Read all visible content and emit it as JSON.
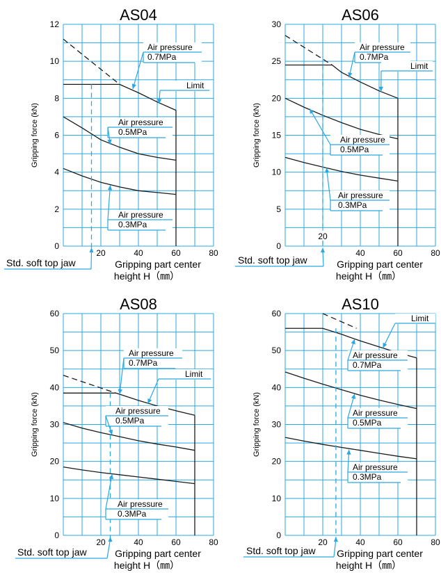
{
  "chart_data": [
    {
      "type": "line",
      "title": "AS04",
      "ylabel": "Gripping force (kN)",
      "xlabel_line1": "Gripping part center",
      "xlabel_line2": "height H（㎜）",
      "xlim": [
        0,
        80
      ],
      "ylim": [
        0,
        12
      ],
      "xticks": [
        "20",
        "40",
        "60",
        "80"
      ],
      "xtick_values": [
        20,
        40,
        60,
        80
      ],
      "yticks": [
        "0",
        "2",
        "4",
        "6",
        "8",
        "10",
        "12"
      ],
      "ytick_values": [
        0,
        2,
        4,
        6,
        8,
        10,
        12
      ],
      "grid": true,
      "x_grid_step": 10,
      "y_grid_step": 1,
      "limit_x": 60,
      "std_jaw_x": 15,
      "std_jaw_label": "Std. soft top jaw",
      "series": [
        {
          "pressure": "0.7MPa",
          "x": [
            30,
            40,
            50,
            60
          ],
          "y": [
            8.75,
            8.3,
            7.8,
            7.35
          ]
        },
        {
          "pressure": "0.5MPa",
          "x": [
            0,
            10,
            20,
            30,
            40,
            50,
            60
          ],
          "y": [
            7.0,
            6.4,
            5.75,
            5.35,
            5.0,
            4.8,
            4.65
          ]
        },
        {
          "pressure": "0.3MPa",
          "x": [
            0,
            10,
            20,
            30,
            40,
            50,
            60
          ],
          "y": [
            4.2,
            3.8,
            3.45,
            3.2,
            3.0,
            2.9,
            2.8
          ]
        }
      ],
      "plateau": {
        "x": [
          0,
          30
        ],
        "y": 8.75
      },
      "extrapolation": {
        "x": [
          0,
          30
        ],
        "y": [
          11.2,
          8.75
        ]
      },
      "annotations": [
        {
          "lines": [
            "Air pressure",
            "0.7MPa"
          ]
        },
        {
          "lines": [
            "Limit"
          ]
        },
        {
          "lines": [
            "Air pressure",
            "0.5MPa"
          ]
        },
        {
          "lines": [
            "Air pressure",
            "0.3MPa"
          ]
        }
      ]
    },
    {
      "type": "line",
      "title": "AS06",
      "ylabel": "Gripping force (kN)",
      "xlabel_line1": "Gripping part center",
      "xlabel_line2": "height H（㎜）",
      "xlim": [
        0,
        80
      ],
      "ylim": [
        0,
        30
      ],
      "xticks": [
        "40",
        "60",
        "80"
      ],
      "xtick_values": [
        40,
        60,
        80
      ],
      "yticks": [
        "0",
        "5",
        "10",
        "15",
        "20",
        "25",
        "30"
      ],
      "ytick_values": [
        0,
        5,
        10,
        15,
        20,
        25,
        30
      ],
      "grid": true,
      "x_grid_step": 10,
      "y_grid_step": 2.5,
      "limit_x": 60,
      "std_jaw_x": 20,
      "std_jaw_value_label": "20",
      "std_jaw_label": "Std. soft top jaw",
      "series": [
        {
          "pressure": "0.7MPa",
          "x": [
            25,
            30,
            40,
            50,
            60
          ],
          "y": [
            24.5,
            23.5,
            22.2,
            21.0,
            20.0
          ]
        },
        {
          "pressure": "0.5MPa",
          "x": [
            0,
            10,
            20,
            30,
            40,
            50,
            60
          ],
          "y": [
            20.0,
            18.8,
            17.7,
            16.7,
            15.8,
            15.1,
            14.5
          ]
        },
        {
          "pressure": "0.3MPa",
          "x": [
            0,
            10,
            20,
            30,
            40,
            50,
            60
          ],
          "y": [
            12.0,
            11.3,
            10.7,
            10.1,
            9.6,
            9.2,
            8.8
          ]
        }
      ],
      "plateau": {
        "x": [
          0,
          25
        ],
        "y": 24.5
      },
      "extrapolation": {
        "x": [
          0,
          25
        ],
        "y": [
          28.5,
          24.5
        ]
      },
      "annotations": [
        {
          "lines": [
            "Air pressure",
            "0.7MPa"
          ]
        },
        {
          "lines": [
            "Limit"
          ]
        },
        {
          "lines": [
            "Air pressure",
            "0.5MPa"
          ]
        },
        {
          "lines": [
            "Air pressure",
            "0.3MPa"
          ]
        }
      ]
    },
    {
      "type": "line",
      "title": "AS08",
      "ylabel": "Gripping force (kN)",
      "xlabel_line1": "Gripping part center",
      "xlabel_line2": "height H（㎜）",
      "xlim": [
        0,
        80
      ],
      "ylim": [
        0,
        60
      ],
      "xticks": [
        "20",
        "40",
        "60",
        "80"
      ],
      "xtick_values": [
        20,
        40,
        60,
        80
      ],
      "yticks": [
        "0",
        "10",
        "20",
        "30",
        "40",
        "50",
        "60"
      ],
      "ytick_values": [
        0,
        10,
        20,
        30,
        40,
        50,
        60
      ],
      "grid": true,
      "x_grid_step": 10,
      "y_grid_step": 5,
      "limit_x": 70,
      "std_jaw_x": 25,
      "std_jaw_label": "Std. soft top jaw",
      "series": [
        {
          "pressure": "0.7MPa",
          "x": [
            28,
            40,
            50,
            60,
            70
          ],
          "y": [
            38.5,
            36.5,
            35.0,
            33.7,
            32.5
          ]
        },
        {
          "pressure": "0.5MPa",
          "x": [
            0,
            10,
            20,
            30,
            40,
            50,
            60,
            70
          ],
          "y": [
            30.5,
            29.0,
            27.8,
            26.7,
            25.6,
            24.7,
            23.9,
            23.0
          ]
        },
        {
          "pressure": "0.3MPa",
          "x": [
            0,
            10,
            20,
            30,
            40,
            50,
            60,
            70
          ],
          "y": [
            18.5,
            17.7,
            17.0,
            16.4,
            15.8,
            15.2,
            14.6,
            14.0
          ]
        }
      ],
      "plateau": {
        "x": [
          0,
          28
        ],
        "y": 38.5
      },
      "extrapolation": {
        "x": [
          0,
          28
        ],
        "y": [
          43.3,
          38.5
        ]
      },
      "annotations": [
        {
          "lines": [
            "Air pressure",
            "0.7MPa"
          ]
        },
        {
          "lines": [
            "Limit"
          ]
        },
        {
          "lines": [
            "Air pressure",
            "0.5MPa"
          ]
        },
        {
          "lines": [
            "Air pressure",
            "0.3MPa"
          ]
        }
      ]
    },
    {
      "type": "line",
      "title": "AS10",
      "ylabel": "Gripping force (kN)",
      "xlabel_line1": "Gripping part center",
      "xlabel_line2": "height H（㎜）",
      "xlim": [
        0,
        80
      ],
      "ylim": [
        0,
        60
      ],
      "xticks": [
        "20",
        "40",
        "60",
        "80"
      ],
      "xtick_values": [
        20,
        40,
        60,
        80
      ],
      "yticks": [
        "0",
        "10",
        "20",
        "30",
        "40",
        "50",
        "60"
      ],
      "ytick_values": [
        0,
        10,
        20,
        30,
        40,
        50,
        60
      ],
      "grid": true,
      "x_grid_step": 10,
      "y_grid_step": 5,
      "limit_x": 70,
      "std_jaw_x": 27,
      "std_jaw_label": "Std. soft top jaw",
      "series": [
        {
          "pressure": "0.7MPa",
          "x": [
            20,
            30,
            40,
            50,
            60,
            70
          ],
          "y": [
            56.0,
            54.4,
            52.6,
            51.0,
            49.4,
            48.0
          ]
        },
        {
          "pressure": "0.5MPa",
          "x": [
            0,
            10,
            20,
            30,
            40,
            50,
            60,
            70
          ],
          "y": [
            44.2,
            42.5,
            40.9,
            39.4,
            37.9,
            36.6,
            35.4,
            34.3
          ]
        },
        {
          "pressure": "0.3MPa",
          "x": [
            0,
            10,
            20,
            30,
            40,
            50,
            60,
            70
          ],
          "y": [
            26.5,
            25.5,
            24.6,
            23.8,
            23.0,
            22.2,
            21.4,
            20.7
          ]
        }
      ],
      "plateau": {
        "x": [
          0,
          20
        ],
        "y": 56.0
      },
      "extrapolation": {
        "x": [
          20,
          38
        ],
        "y": [
          60.0,
          56.0
        ]
      },
      "annotations": [
        {
          "lines": [
            "Limit"
          ]
        },
        {
          "lines": [
            "Air pressure",
            "0.7MPa"
          ]
        },
        {
          "lines": [
            "Air pressure",
            "0.5MPa"
          ]
        },
        {
          "lines": [
            "Air pressure",
            "0.3MPa"
          ]
        }
      ]
    }
  ],
  "colors": {
    "grid": "#2aa8e0",
    "curve": "#1a1a1a",
    "callout": "#2aa8e0",
    "text": "#000000"
  }
}
